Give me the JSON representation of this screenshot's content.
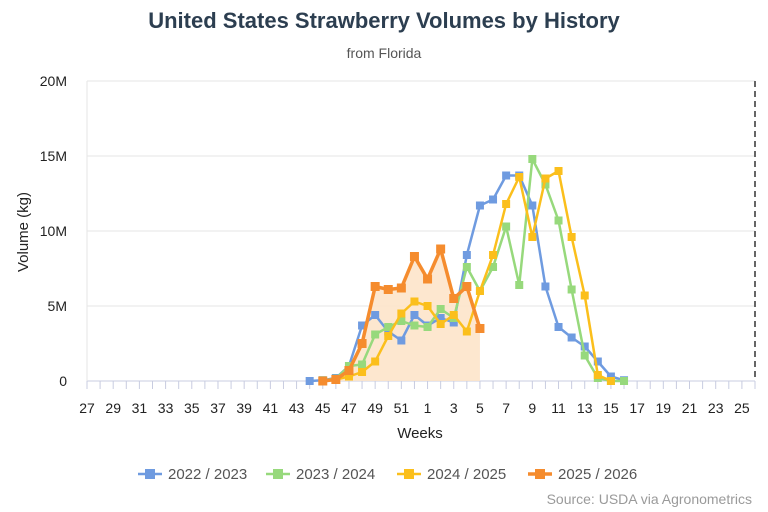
{
  "chart_data": {
    "type": "line",
    "title": "United States Strawberry Volumes by History",
    "subtitle": "from Florida",
    "xlabel": "Weeks",
    "ylabel": "Volume (kg)",
    "ylim": [
      0,
      20000000
    ],
    "y_ticks": [
      {
        "value": 0,
        "label": "0"
      },
      {
        "value": 5000000,
        "label": "5M"
      },
      {
        "value": 10000000,
        "label": "10M"
      },
      {
        "value": 15000000,
        "label": "15M"
      },
      {
        "value": 20000000,
        "label": "20M"
      }
    ],
    "weeks": [
      27,
      28,
      29,
      30,
      31,
      32,
      33,
      34,
      35,
      36,
      37,
      38,
      39,
      40,
      41,
      42,
      43,
      44,
      45,
      46,
      47,
      48,
      49,
      50,
      51,
      52,
      1,
      2,
      3,
      4,
      5,
      6,
      7,
      8,
      9,
      10,
      11,
      12,
      13,
      14,
      15,
      16,
      17,
      18,
      19,
      20,
      21,
      22,
      23,
      24,
      25,
      26
    ],
    "x_tick_labels": [
      "27",
      "29",
      "31",
      "33",
      "35",
      "37",
      "39",
      "41",
      "43",
      "45",
      "47",
      "49",
      "51",
      "1",
      "3",
      "5",
      "7",
      "9",
      "11",
      "13",
      "15",
      "17",
      "19",
      "21",
      "23",
      "25"
    ],
    "grid": true,
    "legend_position": "bottom",
    "series": [
      {
        "name": "2022 / 2023",
        "color": "#6f9be0",
        "start_week": 44,
        "values": [
          0,
          50000,
          200000,
          1000000,
          3700000,
          4400000,
          3300000,
          2700000,
          4400000,
          3700000,
          4200000,
          3900000,
          8400000,
          11700000,
          12100000,
          13700000,
          13700000,
          11700000,
          6300000,
          3600000,
          2900000,
          2300000,
          1300000,
          300000,
          50000
        ]
      },
      {
        "name": "2023 / 2024",
        "color": "#97d97c",
        "start_week": 45,
        "values": [
          50000,
          150000,
          1000000,
          1100000,
          3100000,
          3600000,
          4000000,
          3700000,
          3600000,
          4800000,
          4200000,
          7600000,
          6000000,
          7600000,
          10300000,
          6400000,
          14800000,
          13100000,
          10700000,
          6100000,
          1700000,
          200000,
          0,
          0
        ]
      },
      {
        "name": "2024 / 2025",
        "color": "#fbbf1c",
        "start_week": 45,
        "values": [
          0,
          100000,
          300000,
          600000,
          1300000,
          3000000,
          4500000,
          5300000,
          5000000,
          3800000,
          4400000,
          3300000,
          6000000,
          8400000,
          11800000,
          13600000,
          9600000,
          13500000,
          14000000,
          9600000,
          5700000,
          400000,
          0
        ]
      },
      {
        "name": "2025 / 2026",
        "color": "#f58c2e",
        "start_week": 45,
        "area": true,
        "area_color": "#fde3c7",
        "values": [
          0,
          100000,
          700000,
          2500000,
          6300000,
          6100000,
          6200000,
          8300000,
          6800000,
          8800000,
          5500000,
          6300000,
          3500000
        ]
      }
    ]
  },
  "credit": "Source: USDA via Agronometrics"
}
